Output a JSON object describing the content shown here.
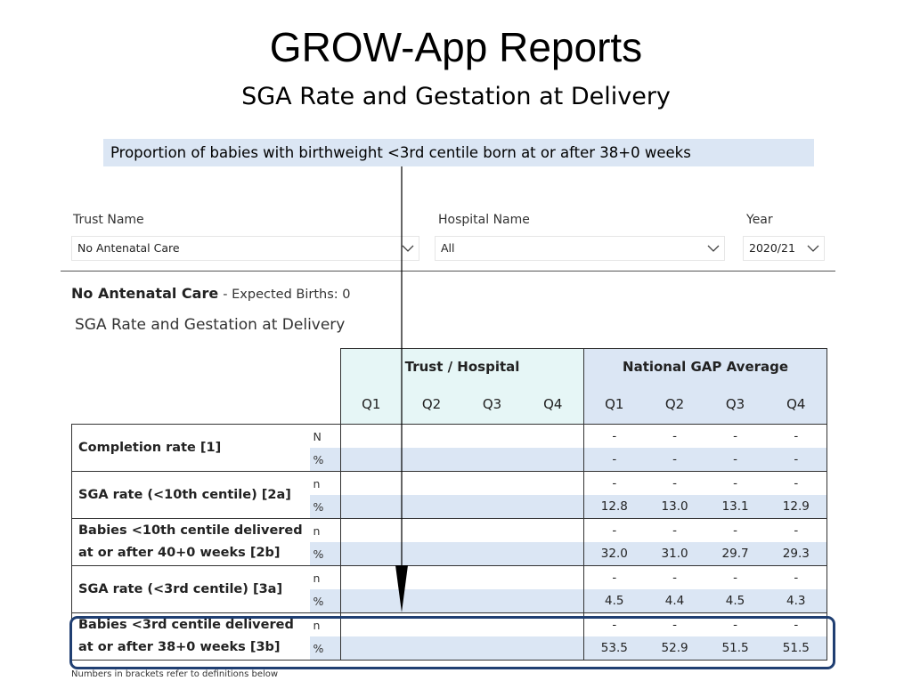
{
  "header": {
    "title": "GROW-App Reports",
    "subtitle": "SGA Rate and Gestation at Delivery",
    "callout": "Proportion of babies with birthweight <3rd centile born at or after 38+0 weeks"
  },
  "filters": {
    "trust": {
      "label": "Trust Name",
      "value": "No Antenatal Care"
    },
    "hospital": {
      "label": "Hospital Name",
      "value": "All"
    },
    "year": {
      "label": "Year",
      "value": "2020/21"
    }
  },
  "entity": {
    "name": "No Antenatal Care",
    "expected": "- Expected Births: 0",
    "section": "SGA Rate and Gestation at Delivery"
  },
  "table": {
    "group_trust": "Trust / Hospital",
    "group_national": "National GAP Average",
    "quarters": [
      "Q1",
      "Q2",
      "Q3",
      "Q4"
    ],
    "rows": [
      {
        "label": "Completion rate [1]",
        "sub1": "N",
        "sub2": "%",
        "n": [
          "-",
          "-",
          "-",
          "-"
        ],
        "pct": [
          "-",
          "-",
          "-",
          "-"
        ]
      },
      {
        "label": "SGA rate (<10th centile) [2a]",
        "sub1": "n",
        "sub2": "%",
        "n": [
          "-",
          "-",
          "-",
          "-"
        ],
        "pct": [
          "12.8",
          "13.0",
          "13.1",
          "12.9"
        ]
      },
      {
        "label": "Babies <10th centile delivered at or after 40+0 weeks [2b]",
        "sub1": "n",
        "sub2": "%",
        "line1": "Babies <10th centile delivered",
        "line2": "at or after 40+0 weeks [2b]",
        "n": [
          "-",
          "-",
          "-",
          "-"
        ],
        "pct": [
          "32.0",
          "31.0",
          "29.7",
          "29.3"
        ]
      },
      {
        "label": "SGA rate (<3rd centile) [3a]",
        "sub1": "n",
        "sub2": "%",
        "n": [
          "-",
          "-",
          "-",
          "-"
        ],
        "pct": [
          "4.5",
          "4.4",
          "4.5",
          "4.3"
        ]
      },
      {
        "label": "Babies <3rd centile delivered at or after 38+0 weeks [3b]",
        "sub1": "n",
        "sub2": "%",
        "line1": "Babies <3rd centile delivered",
        "line2": "at or after 38+0 weeks [3b]",
        "n": [
          "-",
          "-",
          "-",
          "-"
        ],
        "pct": [
          "53.5",
          "52.9",
          "51.5",
          "51.5"
        ]
      }
    ]
  },
  "footnote": "Numbers in brackets refer to definitions below",
  "colors": {
    "callout_bg": "#dbe6f4",
    "trust_bg": "#e6f6f6",
    "highlight_border": "#203f72"
  },
  "icons": {
    "dropdown": "chevron-down-icon",
    "pointer": "arrow-down-icon"
  }
}
